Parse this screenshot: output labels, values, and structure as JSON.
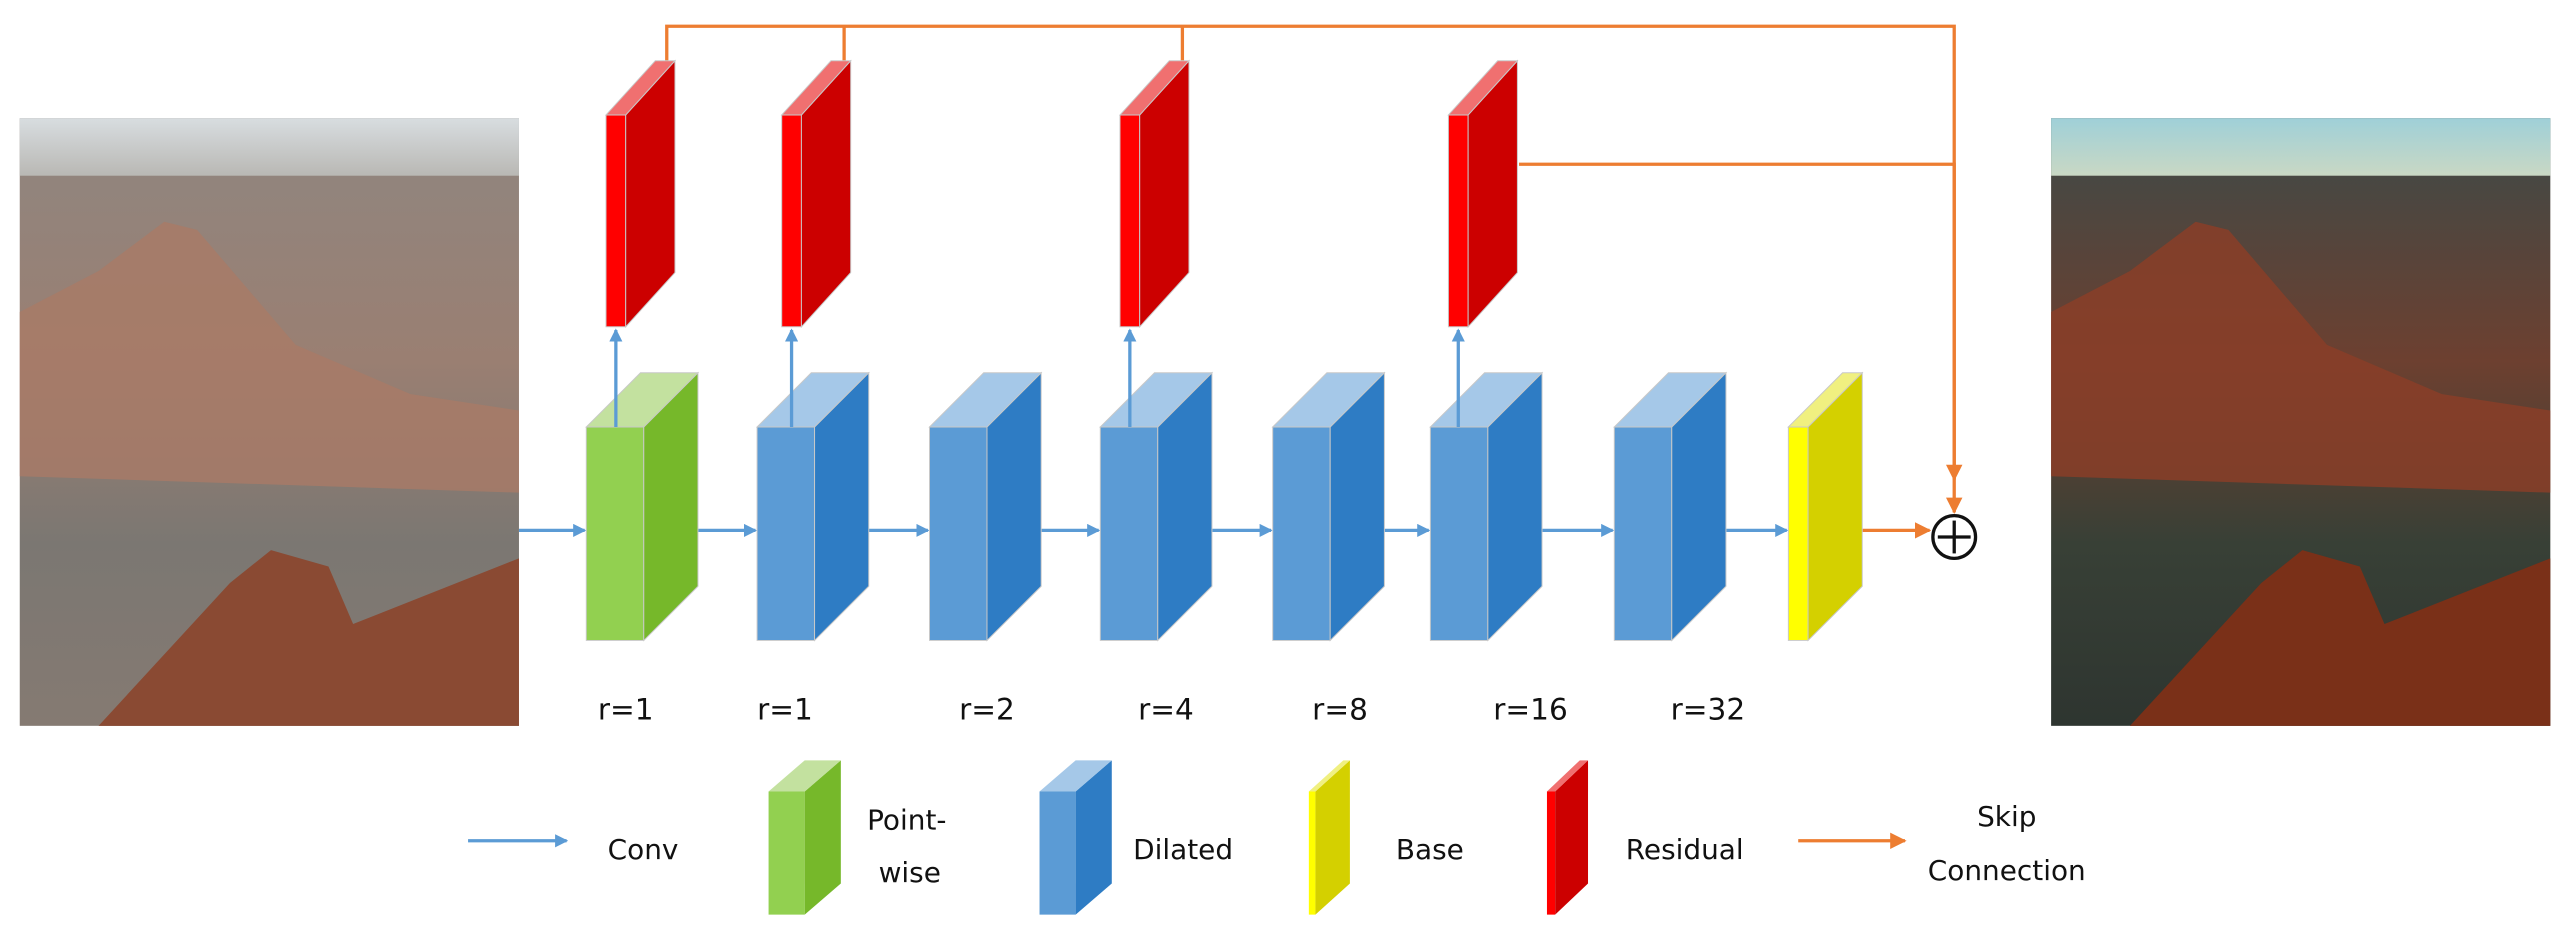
{
  "diagram": {
    "dilation_labels": [
      "r=1",
      "r=1",
      "r=2",
      "r=4",
      "r=8",
      "r=16",
      "r=32"
    ],
    "blocks": [
      "pointwise",
      "dilated",
      "dilated",
      "dilated",
      "dilated",
      "dilated",
      "dilated",
      "base"
    ],
    "residual_after_blocks": [
      0,
      1,
      3,
      5
    ],
    "sum_symbol": "+"
  },
  "legend": {
    "conv": "Conv",
    "pointwise_line1": "Point-",
    "pointwise_line2": "wise",
    "dilated": "Dilated",
    "base": "Base",
    "residual": "Residual",
    "skip_line1": "Skip",
    "skip_line2": "Connection"
  },
  "colors": {
    "conv_arrow": "#5b9bd5",
    "skip": "#ed7d31",
    "pointwise_front": "#92d050",
    "pointwise_side": "#76b82a",
    "dilated_front": "#5b9bd5",
    "dilated_side": "#2e7cc4",
    "base": "#d4d000",
    "residual": "#cc0000"
  },
  "images": {
    "input": "hazy canyon photo",
    "output": "enhanced canyon photo"
  }
}
